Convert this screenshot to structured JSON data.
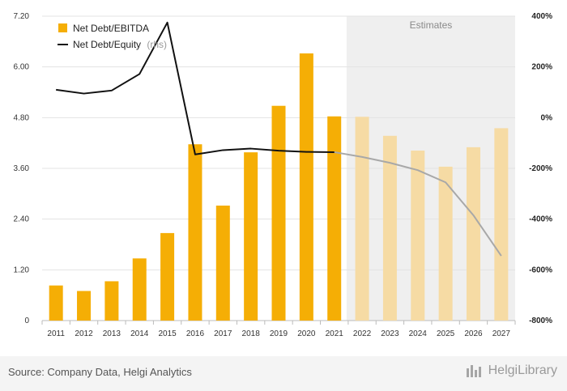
{
  "chart_data": {
    "type": "bar",
    "categories": [
      "2011",
      "2012",
      "2013",
      "2014",
      "2015",
      "2016",
      "2017",
      "2018",
      "2019",
      "2020",
      "2021",
      "2022",
      "2023",
      "2024",
      "2025",
      "2026",
      "2027"
    ],
    "estimate_start_index": 11,
    "estimates_label": "Estimates",
    "series": [
      {
        "name": "Net Debt/EBITDA",
        "type": "bar",
        "axis": "left",
        "color": "#f5ae05",
        "estimate_color": "#f6dba4",
        "values": [
          0.83,
          0.7,
          0.93,
          1.47,
          2.07,
          4.17,
          2.72,
          3.98,
          5.08,
          6.32,
          4.83,
          4.82,
          4.37,
          4.02,
          3.64,
          4.1,
          4.55
        ]
      },
      {
        "name": "Net Debt/Equity",
        "name_suffix": "(rhs)",
        "type": "line",
        "axis": "right",
        "color": "#111111",
        "estimate_color": "#a8a8a8",
        "values": [
          110,
          95,
          107,
          172,
          375,
          -145,
          -128,
          -122,
          -130,
          -135,
          -136,
          -155,
          -178,
          -207,
          -255,
          -385,
          -545
        ]
      }
    ],
    "y_left": {
      "min": 0,
      "max": 7.2,
      "ticks": [
        0,
        1.2,
        2.4,
        3.6,
        4.8,
        6.0,
        7.2
      ],
      "tick_labels": [
        "0",
        "1.20",
        "2.40",
        "3.60",
        "4.80",
        "6.00",
        "7.20"
      ]
    },
    "y_right": {
      "min": -800,
      "max": 400,
      "ticks": [
        -800,
        -600,
        -400,
        -200,
        0,
        200,
        400
      ],
      "tick_labels": [
        "-800%",
        "-600%",
        "-400%",
        "-200%",
        "0%",
        "200%",
        "400%"
      ]
    },
    "grid": true,
    "legend_position": "top-left"
  },
  "footer": {
    "source": "Source: Company Data, Helgi Analytics",
    "logo_text": "HelgiLibrary"
  }
}
